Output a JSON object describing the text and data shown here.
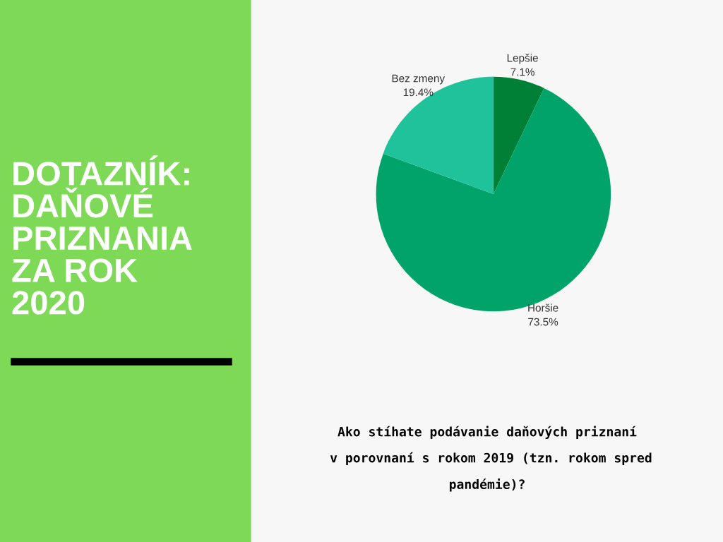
{
  "chart_data": {
    "type": "pie",
    "title": "DOTAZNÍK:\nDAŇOVÉ\nPRIZNANIA\nZA ROK\n2020",
    "categories": [
      "Lepšie",
      "Horšie",
      "Bez zmeny"
    ],
    "values": [
      7.1,
      73.5,
      19.4
    ],
    "value_labels": [
      "7.1%",
      "73.5%",
      "19.4%"
    ],
    "colors": [
      "#008037",
      "#00a36a",
      "#20c29b"
    ],
    "annotations": [
      "Ako stíhate podávanie daňových priznaní\n v porovnaní s rokom 2019 (tzn. rokom spred\npandémie)?"
    ],
    "legend": false
  }
}
